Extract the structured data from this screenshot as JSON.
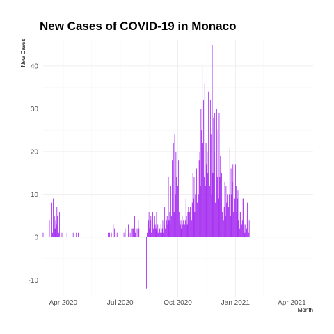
{
  "chart_data": {
    "type": "bar",
    "title": "New Cases of COVID-19 in Monaco",
    "xlabel": "Month",
    "ylabel": "New Cases",
    "x_start": "2020-02-29",
    "x_end": "2021-05-05",
    "ylim": [
      -14,
      46
    ],
    "y_ticks": [
      -10,
      0,
      10,
      20,
      30,
      40
    ],
    "x_ticks": [
      {
        "date": "2020-04-01",
        "label": "Apr 2020"
      },
      {
        "date": "2020-07-01",
        "label": "Jul 2020"
      },
      {
        "date": "2020-10-01",
        "label": "Oct 2020"
      },
      {
        "date": "2021-01-01",
        "label": "Jan 2021"
      },
      {
        "date": "2021-04-01",
        "label": "Apr 2021"
      }
    ],
    "grid": true,
    "bar_color": "#a020f0",
    "start_date": "2020-02-29",
    "values": [
      1,
      0,
      0,
      0,
      0,
      0,
      0,
      0,
      0,
      0,
      4,
      0,
      0,
      0,
      8,
      1,
      9,
      3,
      5,
      2,
      4,
      3,
      7,
      5,
      2,
      1,
      6,
      0,
      0,
      0,
      1,
      0,
      0,
      0,
      0,
      0,
      0,
      0,
      1,
      0,
      0,
      0,
      0,
      0,
      0,
      0,
      0,
      0,
      1,
      0,
      0,
      0,
      0,
      1,
      0,
      0,
      1,
      0,
      0,
      0,
      0,
      0,
      0,
      0,
      0,
      0,
      0,
      0,
      0,
      0,
      0,
      0,
      0,
      0,
      0,
      0,
      0,
      0,
      0,
      0,
      0,
      0,
      0,
      0,
      0,
      0,
      0,
      0,
      0,
      0,
      0,
      0,
      0,
      0,
      0,
      0,
      0,
      0,
      0,
      0,
      0,
      0,
      0,
      0,
      1,
      0,
      1,
      0,
      0,
      1,
      0,
      0,
      3,
      0,
      2,
      0,
      0,
      0,
      1,
      0,
      0,
      0,
      0,
      0,
      0,
      0,
      0,
      0,
      0,
      1,
      0,
      2,
      0,
      0,
      1,
      0,
      3,
      0,
      0,
      1,
      0,
      2,
      0,
      2,
      2,
      0,
      5,
      1,
      2,
      0,
      2,
      0,
      4,
      2,
      0,
      0,
      0,
      0,
      0,
      0,
      0,
      0,
      0,
      0,
      0,
      -12,
      1,
      3,
      4,
      6,
      2,
      4,
      5,
      1,
      3,
      6,
      2,
      4,
      5,
      3,
      2,
      6,
      1,
      3,
      1,
      2,
      2,
      1,
      3,
      1,
      2,
      4,
      1,
      3,
      7,
      2,
      3,
      4,
      5,
      3,
      14,
      4,
      6,
      3,
      12,
      5,
      18,
      8,
      22,
      6,
      24,
      10,
      20,
      14,
      8,
      12,
      18,
      6,
      4,
      3,
      4,
      2,
      5,
      3,
      4,
      2,
      3,
      4,
      9,
      5,
      3,
      6,
      7,
      4,
      6,
      7,
      12,
      4,
      8,
      15,
      9,
      14,
      6,
      10,
      12,
      16,
      8,
      14,
      10,
      18,
      20,
      12,
      30,
      25,
      40,
      22,
      32,
      14,
      36,
      12,
      22,
      17,
      20,
      15,
      34,
      27,
      12,
      32,
      24,
      10,
      45,
      15,
      28,
      20,
      29,
      8,
      29,
      30,
      14,
      25,
      9,
      29,
      14,
      19,
      9,
      15,
      6,
      11,
      4,
      7,
      13,
      5,
      12,
      8,
      10,
      15,
      7,
      10,
      21,
      5,
      16,
      10,
      13,
      17,
      6,
      17,
      9,
      17,
      12,
      6,
      9,
      11,
      4,
      6,
      2,
      6,
      5,
      3,
      4,
      9,
      9,
      3,
      1,
      3,
      5,
      2,
      8,
      3,
      1,
      4,
      0,
      0,
      0,
      0,
      0
    ]
  }
}
